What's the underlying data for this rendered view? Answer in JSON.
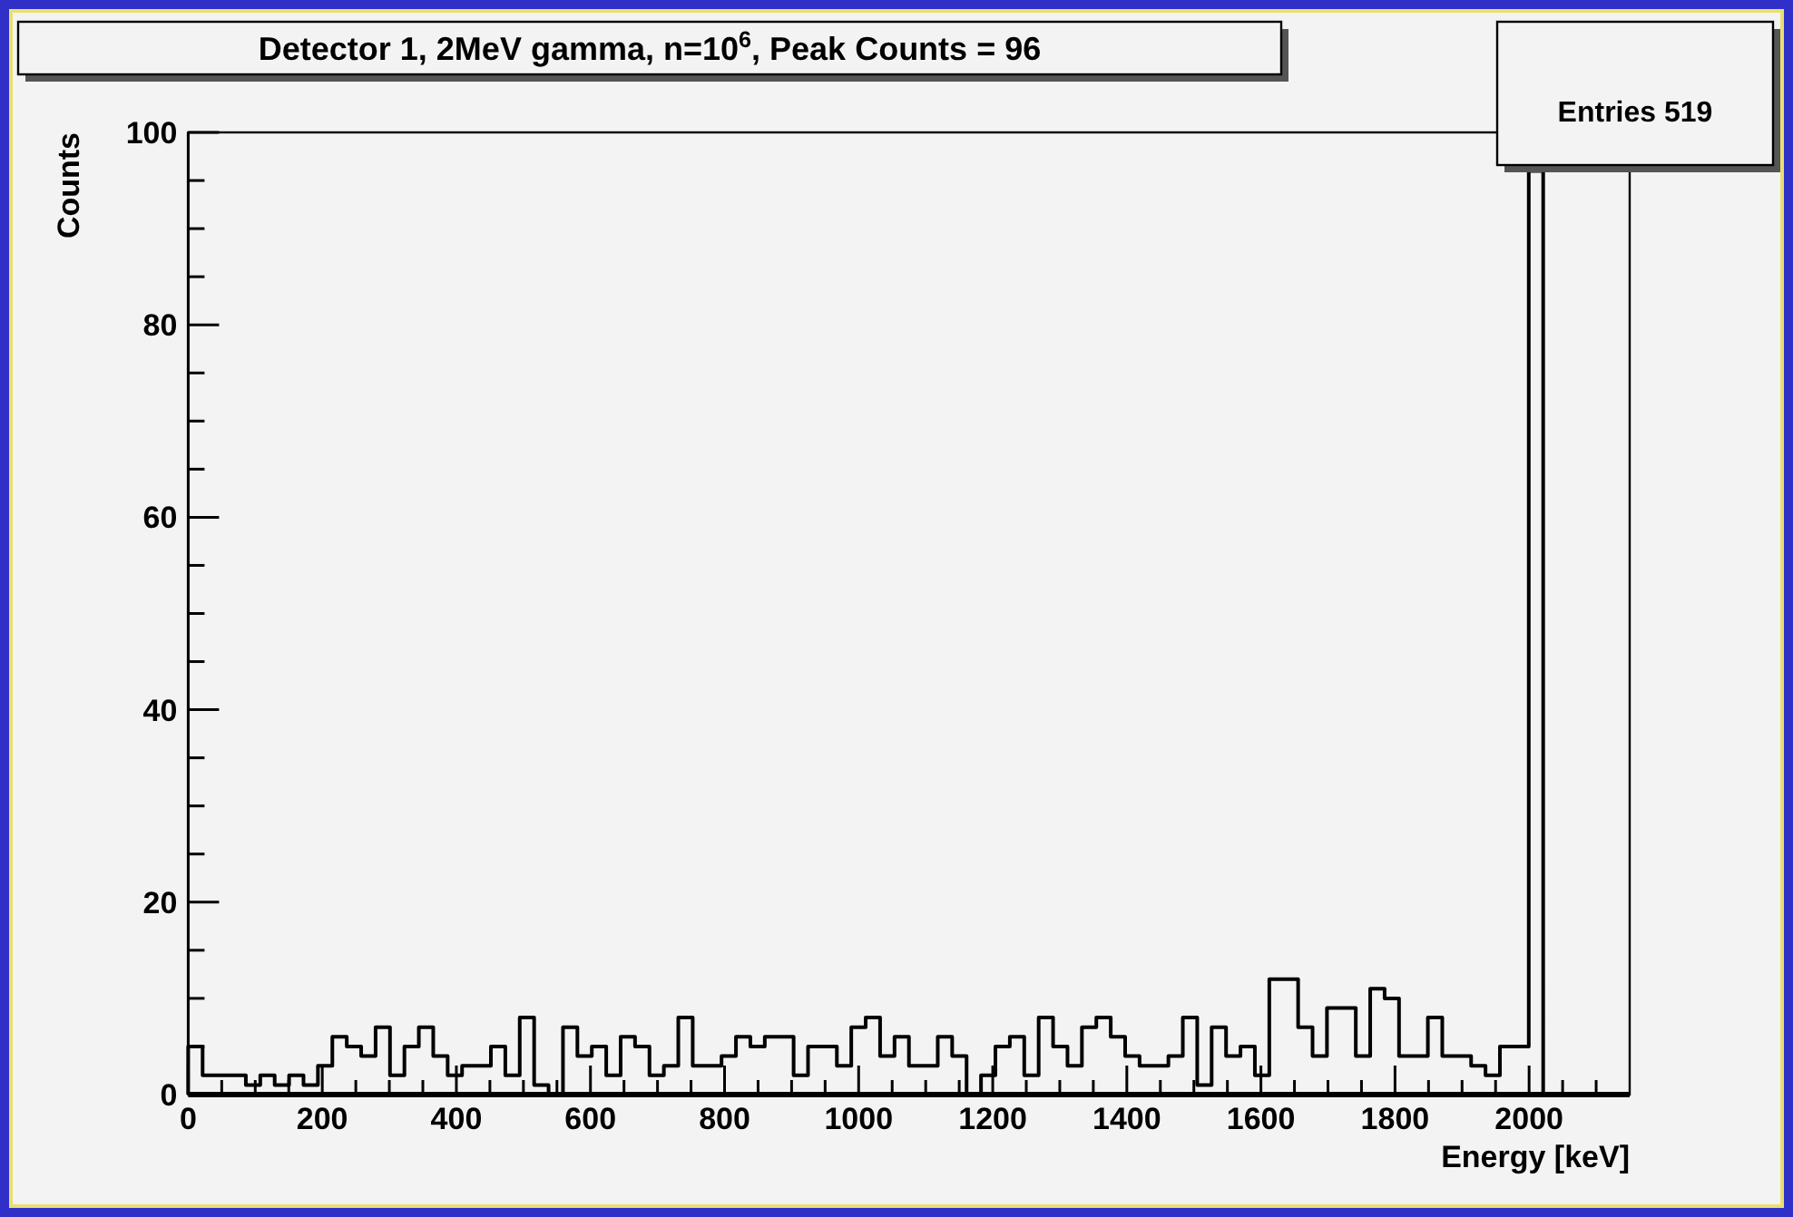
{
  "chart_data": {
    "type": "histogram",
    "title": "Detector 1, 2MeV gamma, n=10$^{6}$, Peak Counts = 96",
    "xlabel": "Energy [keV]",
    "ylabel": "Counts",
    "annotations": [
      "Entries 519"
    ],
    "bins": [
      0,
      21.5,
      43,
      64.5,
      86,
      107.5,
      129,
      150.5,
      172,
      193.5,
      215,
      236.5,
      258,
      279.5,
      301,
      322.5,
      344,
      365.5,
      387,
      408.5,
      430,
      451.5,
      473,
      494.5,
      516,
      537.5,
      559,
      580.5,
      602,
      623.5,
      645,
      666.5,
      688,
      709.5,
      731,
      752.5,
      774,
      795.5,
      817,
      838.5,
      860,
      881.5,
      903,
      924.5,
      946,
      967.5,
      989,
      1010.5,
      1032,
      1053.5,
      1075,
      1096.5,
      1118,
      1139.5,
      1161,
      1182.5,
      1204,
      1225.5,
      1247,
      1268.5,
      1290,
      1311.5,
      1333,
      1354.5,
      1376,
      1397.5,
      1419,
      1440.5,
      1462,
      1483.5,
      1505,
      1526.5,
      1548,
      1569.5,
      1591,
      1612.5,
      1634,
      1655.5,
      1677,
      1698.5,
      1720,
      1741.5,
      1763,
      1784.5,
      1806,
      1827.5,
      1849,
      1870.5,
      1892,
      1913.5,
      1935,
      1956.5,
      1978,
      1999.5,
      2021,
      2042.5,
      2064,
      2085.5,
      2107,
      2128.5,
      2150
    ],
    "values": [
      5,
      2,
      2,
      2,
      1,
      2,
      1,
      2,
      1,
      3,
      6,
      5,
      4,
      7,
      2,
      5,
      7,
      4,
      2,
      3,
      3,
      5,
      2,
      8,
      1,
      0,
      7,
      4,
      5,
      2,
      6,
      5,
      2,
      3,
      8,
      3,
      3,
      4,
      6,
      5,
      6,
      6,
      2,
      5,
      5,
      3,
      7,
      8,
      4,
      6,
      3,
      3,
      6,
      4,
      0,
      2,
      5,
      6,
      2,
      8,
      5,
      3,
      7,
      8,
      6,
      4,
      3,
      3,
      4,
      8,
      1,
      7,
      4,
      5,
      2,
      12,
      12,
      7,
      4,
      9,
      9,
      4,
      11,
      10,
      4,
      4,
      8,
      4,
      4,
      3,
      2,
      5,
      5,
      96,
      0,
      0,
      0,
      0,
      0,
      0
    ],
    "color": "#000000",
    "xlim": [
      0,
      2150
    ],
    "ylim": [
      0,
      100
    ],
    "xticks": [
      0,
      {
        "value": 50,
        "label": null
      },
      {
        "value": 100,
        "label": null
      },
      {
        "value": 150,
        "label": null
      },
      200,
      {
        "value": 250,
        "label": null
      },
      {
        "value": 300,
        "label": null
      },
      {
        "value": 350,
        "label": null
      },
      400,
      {
        "value": 450,
        "label": null
      },
      {
        "value": 500,
        "label": null
      },
      {
        "value": 550,
        "label": null
      },
      600,
      {
        "value": 650,
        "label": null
      },
      {
        "value": 700,
        "label": null
      },
      {
        "value": 750,
        "label": null
      },
      800,
      {
        "value": 850,
        "label": null
      },
      {
        "value": 900,
        "label": null
      },
      {
        "value": 950,
        "label": null
      },
      1000,
      {
        "value": 1050,
        "label": null
      },
      {
        "value": 1100,
        "label": null
      },
      {
        "value": 1150,
        "label": null
      },
      1200,
      {
        "value": 1250,
        "label": null
      },
      {
        "value": 1300,
        "label": null
      },
      {
        "value": 1350,
        "label": null
      },
      1400,
      {
        "value": 1450,
        "label": null
      },
      {
        "value": 1500,
        "label": null
      },
      {
        "value": 1550,
        "label": null
      },
      1600,
      {
        "value": 1650,
        "label": null
      },
      {
        "value": 1700,
        "label": null
      },
      {
        "value": 1750,
        "label": null
      },
      1800,
      {
        "value": 1850,
        "label": null
      },
      {
        "value": 1900,
        "label": null
      },
      {
        "value": 1950,
        "label": null
      },
      2000,
      {
        "value": 2050,
        "label": null
      },
      {
        "value": 2100,
        "label": null
      }
    ],
    "yticks": [
      0,
      {
        "value": 5,
        "label": null
      },
      {
        "value": 10,
        "label": null
      },
      {
        "value": 15,
        "label": null
      },
      20,
      {
        "value": 25,
        "label": null
      },
      {
        "value": 30,
        "label": null
      },
      {
        "value": 35,
        "label": null
      },
      40,
      {
        "value": 45,
        "label": null
      },
      {
        "value": 50,
        "label": null
      },
      {
        "value": 55,
        "label": null
      },
      60,
      {
        "value": 65,
        "label": null
      },
      {
        "value": 70,
        "label": null
      },
      {
        "value": 75,
        "label": null
      },
      80,
      {
        "value": 85,
        "label": null
      },
      {
        "value": 90,
        "label": null
      },
      {
        "value": 95,
        "label": null
      },
      100
    ],
    "grid": false
  }
}
